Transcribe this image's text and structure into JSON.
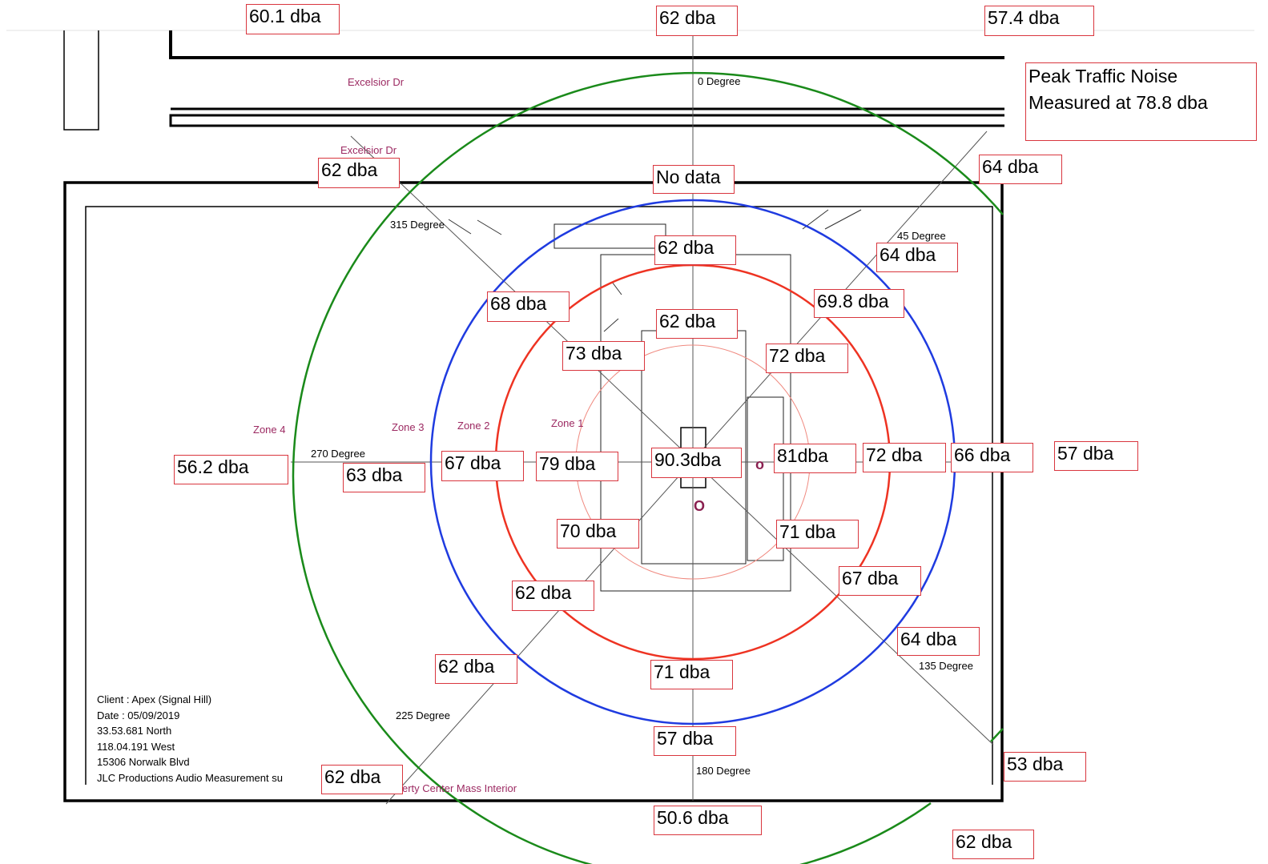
{
  "note": {
    "line1": "Peak Traffic Noise",
    "line2": "Measured at 78.8 dba"
  },
  "readings": {
    "top_left_outer": "60.1 dba",
    "top_center_outer": "62 dba",
    "top_right_outer": "57.4  dba",
    "nw_edge": "62 dba",
    "north_edge": "No data",
    "ne_edge": "64 dba",
    "north_zone3": "62 dba",
    "ne_zone3": "64 dba",
    "nw_zone3": "68 dba",
    "ne_zone2": "69.8 dba",
    "north_zone2": "62 dba",
    "nw_zone2": "73 dba",
    "ne_zone1": "72 dba",
    "west_zone4": "56.2 dba",
    "west_zone3": "63 dba",
    "west_zone2": "67 dba",
    "west_zone1": "79 dba",
    "center": "90.3dba",
    "east_zone1": "81dba",
    "east_zone2": "72 dba",
    "east_zone3": "66 dba",
    "east_outer": "57 dba",
    "sw_zone1": "70 dba",
    "se_zone1": "71 dba",
    "sw_zone2": "62 dba",
    "se_zone2": "67 dba",
    "se_zone3": "64 dba",
    "sw_zone3": "62 dba",
    "south_zone2": "71 dba",
    "south_zone3": "57 dba",
    "se_outer": "53 dba",
    "sw_outer": "62 dba",
    "south_outer": "50.6 dba",
    "se_far": "62 dba"
  },
  "degrees": {
    "d0": "0 Degree",
    "d45": "45 Degree",
    "d135": "135 Degree",
    "d180": "180 Degree",
    "d225": "225 Degree",
    "d270": "270 Degree",
    "d315": "315 Degree"
  },
  "roads": {
    "upper": "Excelsior Dr",
    "lower": "Excelsior Dr"
  },
  "zones": {
    "z1": "Zone 1",
    "z2": "Zone 2",
    "z3": "Zone 3",
    "z4": "Zone 4"
  },
  "info": {
    "client": "Client : Apex (Signal Hill)",
    "date": "Date : 05/09/2019",
    "lat": "33.53.681 North",
    "lon": "118.04.191 West",
    "address": "15306 Norwalk Blvd",
    "company": "JLC Productions Audio Measurement su"
  },
  "footer_label": "erty Center Mass Interior",
  "markers": {
    "m1": "o",
    "m2": "O"
  },
  "colors": {
    "zone4_ring": "#1a8a1a",
    "zone3_ring": "#1f3be0",
    "zone2_ring": "#ee3322",
    "zone1_ring": "#f08a80",
    "label_border": "#d9363e",
    "road_text": "#9c2a62"
  }
}
